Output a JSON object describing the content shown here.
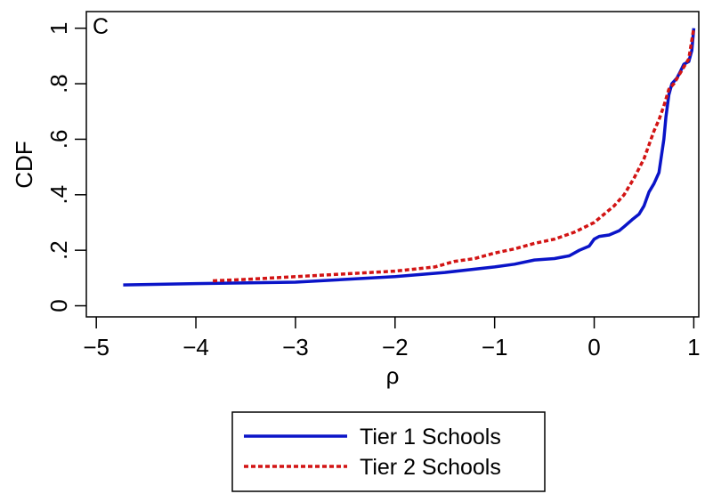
{
  "chart_data": {
    "type": "line",
    "panel_label": "C",
    "xlabel": "ρ",
    "ylabel": "CDF",
    "xlim": [
      -5.1,
      1.05
    ],
    "ylim": [
      -0.04,
      1.06
    ],
    "x_ticks": [
      -5,
      -4,
      -3,
      -2,
      -1,
      0,
      1
    ],
    "x_tick_labels": [
      "−5",
      "−4",
      "−3",
      "−2",
      "−1",
      "0",
      "1"
    ],
    "y_ticks": [
      0,
      0.2,
      0.4,
      0.6,
      0.8,
      1
    ],
    "y_tick_labels": [
      "0",
      ".2",
      ".4",
      ".6",
      ".8",
      "1"
    ],
    "grid": false,
    "legend_position": "bottom-center, below plot",
    "series": [
      {
        "name": "Tier 1 Schools",
        "color": "#0a14c8",
        "line_style": "solid",
        "points": [
          [
            -4.73,
            0.075
          ],
          [
            -4.0,
            0.08
          ],
          [
            -3.0,
            0.085
          ],
          [
            -2.5,
            0.095
          ],
          [
            -2.0,
            0.105
          ],
          [
            -1.5,
            0.12
          ],
          [
            -1.0,
            0.14
          ],
          [
            -0.8,
            0.15
          ],
          [
            -0.6,
            0.165
          ],
          [
            -0.4,
            0.17
          ],
          [
            -0.25,
            0.18
          ],
          [
            -0.15,
            0.2
          ],
          [
            -0.05,
            0.215
          ],
          [
            0.0,
            0.24
          ],
          [
            0.05,
            0.25
          ],
          [
            0.15,
            0.255
          ],
          [
            0.25,
            0.27
          ],
          [
            0.3,
            0.285
          ],
          [
            0.38,
            0.31
          ],
          [
            0.45,
            0.33
          ],
          [
            0.5,
            0.36
          ],
          [
            0.55,
            0.41
          ],
          [
            0.6,
            0.44
          ],
          [
            0.65,
            0.48
          ],
          [
            0.7,
            0.6
          ],
          [
            0.72,
            0.68
          ],
          [
            0.75,
            0.76
          ],
          [
            0.78,
            0.8
          ],
          [
            0.83,
            0.82
          ],
          [
            0.86,
            0.84
          ],
          [
            0.9,
            0.87
          ],
          [
            0.95,
            0.88
          ],
          [
            0.98,
            0.92
          ],
          [
            1.0,
            1.0
          ]
        ]
      },
      {
        "name": "Tier 2 Schools",
        "color": "#d21414",
        "line_style": "dashed",
        "points": [
          [
            -3.83,
            0.09
          ],
          [
            -3.5,
            0.095
          ],
          [
            -3.0,
            0.105
          ],
          [
            -2.5,
            0.115
          ],
          [
            -2.0,
            0.125
          ],
          [
            -1.6,
            0.14
          ],
          [
            -1.4,
            0.16
          ],
          [
            -1.2,
            0.17
          ],
          [
            -1.0,
            0.19
          ],
          [
            -0.8,
            0.205
          ],
          [
            -0.6,
            0.225
          ],
          [
            -0.4,
            0.24
          ],
          [
            -0.2,
            0.265
          ],
          [
            0.0,
            0.3
          ],
          [
            0.1,
            0.33
          ],
          [
            0.2,
            0.36
          ],
          [
            0.3,
            0.4
          ],
          [
            0.4,
            0.46
          ],
          [
            0.5,
            0.53
          ],
          [
            0.55,
            0.58
          ],
          [
            0.6,
            0.63
          ],
          [
            0.65,
            0.67
          ],
          [
            0.7,
            0.72
          ],
          [
            0.75,
            0.78
          ],
          [
            0.8,
            0.8
          ],
          [
            0.85,
            0.83
          ],
          [
            0.9,
            0.86
          ],
          [
            0.95,
            0.89
          ],
          [
            1.0,
            1.0
          ]
        ]
      }
    ]
  }
}
